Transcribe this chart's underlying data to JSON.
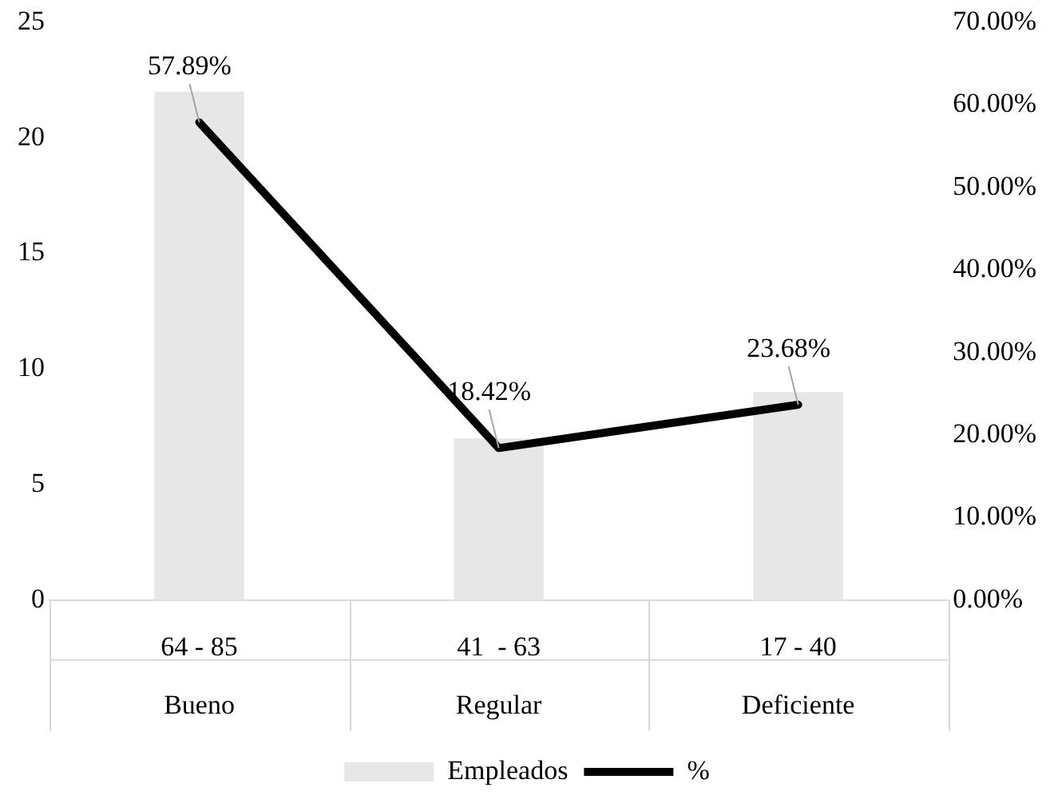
{
  "chart_data": {
    "type": "bar",
    "categories": [
      "64 - 85\nBueno",
      "41  - 63\nRegular",
      "17 - 40\nDeficiente"
    ],
    "series": [
      {
        "name": "Empleados",
        "color": "#e7e7e7",
        "values": [
          22,
          7,
          9
        ]
      },
      {
        "name": "%",
        "type": "line",
        "axis": "y2",
        "color": "#000000",
        "marker": "none",
        "values": [
          57.89,
          18.42,
          23.68
        ],
        "value_labels": [
          "57.89%",
          "18.42%",
          "23.68%"
        ]
      }
    ],
    "ylim": [
      0,
      25
    ],
    "yticks": [
      0,
      5,
      10,
      15,
      20,
      25
    ],
    "y2lim": [
      0,
      70
    ],
    "y2ticks": [
      {
        "value": 0,
        "label": "0.00%"
      },
      {
        "value": 10,
        "label": "10.00%"
      },
      {
        "value": 20,
        "label": "20.00%"
      },
      {
        "value": 30,
        "label": "30.00%"
      },
      {
        "value": 40,
        "label": "40.00%"
      },
      {
        "value": 50,
        "label": "50.00%"
      },
      {
        "value": 60,
        "label": "60.00%"
      },
      {
        "value": 70,
        "label": "70.00%"
      }
    ],
    "grid": false,
    "legend": "bottom"
  }
}
